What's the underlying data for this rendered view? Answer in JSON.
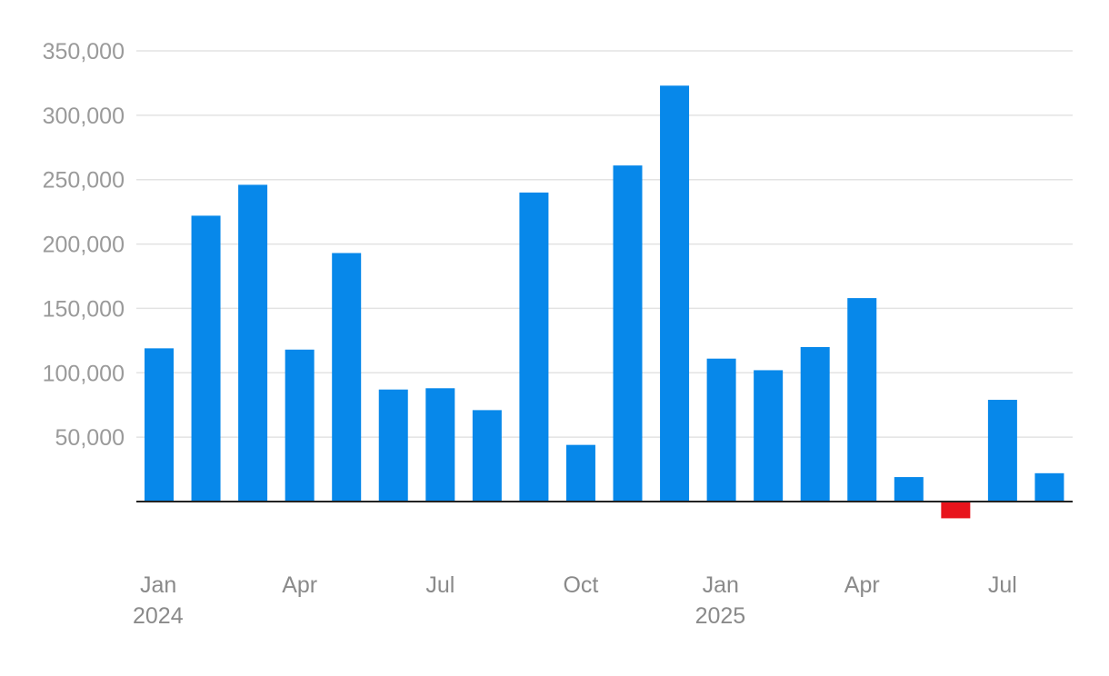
{
  "chart_data": {
    "type": "bar",
    "title": "",
    "xlabel": "",
    "ylabel": "",
    "categories": [
      "Jan 2024",
      "Feb 2024",
      "Mar 2024",
      "Apr 2024",
      "May 2024",
      "Jun 2024",
      "Jul 2024",
      "Aug 2024",
      "Sep 2024",
      "Oct 2024",
      "Nov 2024",
      "Dec 2024",
      "Jan 2025",
      "Feb 2025",
      "Mar 2025",
      "Apr 2025",
      "May 2025",
      "Jun 2025",
      "Jul 2025",
      "Aug 2025"
    ],
    "values": [
      119000,
      222000,
      246000,
      118000,
      193000,
      87000,
      88000,
      71000,
      240000,
      44000,
      261000,
      323000,
      111000,
      102000,
      120000,
      158000,
      19000,
      -13000,
      79000,
      22000
    ],
    "ylim": [
      -30000,
      350000
    ],
    "yticks": [
      50000,
      100000,
      150000,
      200000,
      250000,
      300000,
      350000
    ],
    "ytick_labels": [
      "50,000",
      "100,000",
      "150,000",
      "200,000",
      "250,000",
      "300,000",
      "350,000"
    ],
    "xtick_labels": [
      {
        "index": 0,
        "month": "Jan",
        "year": "2024"
      },
      {
        "index": 3,
        "month": "Apr",
        "year": ""
      },
      {
        "index": 6,
        "month": "Jul",
        "year": ""
      },
      {
        "index": 9,
        "month": "Oct",
        "year": ""
      },
      {
        "index": 12,
        "month": "Jan",
        "year": "2025"
      },
      {
        "index": 15,
        "month": "Apr",
        "year": ""
      },
      {
        "index": 18,
        "month": "Jul",
        "year": ""
      }
    ],
    "colors": {
      "positive": "#0788ea",
      "negative": "#e8141c"
    },
    "grid": true,
    "legend": "none"
  }
}
